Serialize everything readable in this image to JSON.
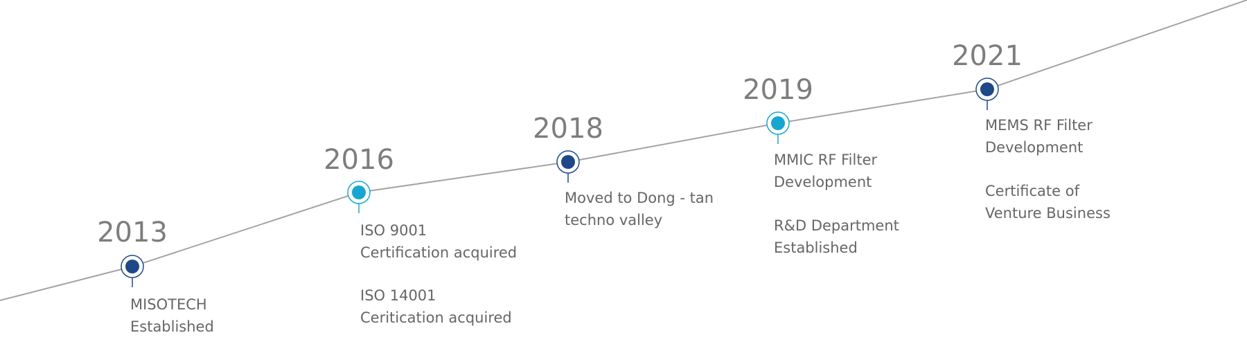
{
  "milestones": [
    {
      "year": "2013",
      "items": [
        [
          "MISOTECH",
          "Established"
        ]
      ]
    },
    {
      "year": "2016",
      "items": [
        [
          "ISO 9001",
          "Certification acquired"
        ],
        [
          "ISO 14001",
          "Ceritication acquired"
        ]
      ]
    },
    {
      "year": "2018",
      "items": [
        [
          "Moved to Dong - tan",
          "techno valley"
        ]
      ]
    },
    {
      "year": "2019",
      "items": [
        [
          "MMIC RF Filter",
          "Development"
        ],
        [
          "R&D Department",
          "Established"
        ]
      ]
    },
    {
      "year": "2021",
      "items": [
        [
          "MEMS RF Filter",
          "Development"
        ],
        [
          "Certificate of",
          "Venture Business"
        ]
      ]
    }
  ]
}
